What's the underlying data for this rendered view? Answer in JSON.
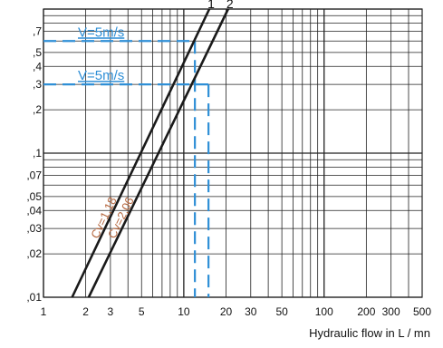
{
  "chart_data": {
    "type": "line",
    "x_scale": "log",
    "y_scale": "log",
    "xlim": [
      1,
      500
    ],
    "ylim": [
      0.01,
      1
    ],
    "x_tick_labels": [
      "1",
      "2",
      "3",
      "5",
      "10",
      "20",
      "30",
      "50",
      "100",
      "200",
      "300",
      "500"
    ],
    "x_tick_values": [
      1,
      2,
      3,
      5,
      10,
      20,
      30,
      50,
      100,
      200,
      300,
      500
    ],
    "y_tick_labels": [
      ",7",
      ",5",
      ",4",
      ",3",
      ",2",
      ",1",
      ",07",
      ",05",
      ",04",
      ",03",
      ",02",
      ",01"
    ],
    "y_tick_values": [
      0.7,
      0.5,
      0.4,
      0.3,
      0.2,
      0.1,
      0.07,
      0.05,
      0.04,
      0.03,
      0.02,
      0.01
    ],
    "grid": true,
    "series": [
      {
        "name": "1",
        "label": "Cv=1,18",
        "color": "#1a1a1a",
        "label_color": "#b5663d",
        "x": [
          1.6,
          15.2
        ],
        "y": [
          0.01,
          1.0
        ]
      },
      {
        "name": "2",
        "label": "Cv=2,06",
        "color": "#1a1a1a",
        "label_color": "#b5663d",
        "x": [
          2.1,
          20.7
        ],
        "y": [
          0.01,
          1.0
        ]
      }
    ],
    "annotations": [
      {
        "text": "V=5m/s",
        "color": "#2f8fd6",
        "x": 12.0,
        "y": 0.6
      },
      {
        "text": "V=5m/s",
        "color": "#2f8fd6",
        "x": 15.0,
        "y": 0.3
      }
    ],
    "xlabel": "Hydraulic flow in L / mn",
    "ylabel": ""
  }
}
